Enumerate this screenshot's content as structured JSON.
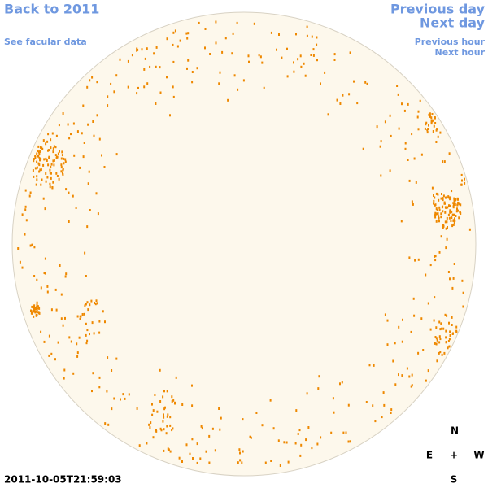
{
  "navigation": {
    "back": "Back to 2011",
    "facular": "See facular data",
    "previous_day": "Previous day",
    "next_day": "Next day",
    "previous_hour": "Previous hour",
    "next_hour": "Next hour"
  },
  "timestamp": "2011-10-05T21:59:03",
  "compass": {
    "north": "N",
    "east": "E",
    "center": "+",
    "west": "W",
    "south": "S"
  }
}
